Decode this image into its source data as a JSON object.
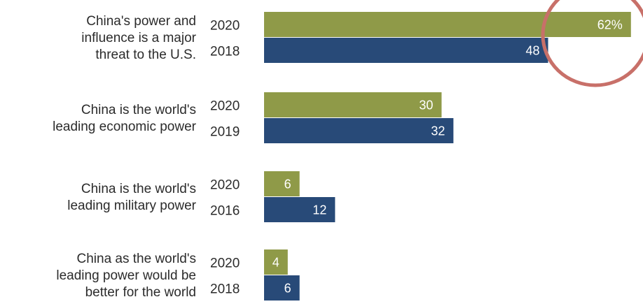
{
  "chart_data": {
    "type": "bar",
    "orientation": "horizontal",
    "xlim": [
      0,
      100
    ],
    "grid": false,
    "legend": "none",
    "colors": {
      "newer": "#8f9a48",
      "older": "#284a78",
      "highlight": "#c87069",
      "value_text": "#ffffff"
    },
    "groups": [
      {
        "label_lines": [
          "China's power and",
          "influence is a major",
          "threat to the U.S."
        ],
        "bars": [
          {
            "year": "2020",
            "value": 62,
            "value_label": "62%",
            "tone": "newer"
          },
          {
            "year": "2018",
            "value": 48,
            "value_label": "48",
            "tone": "older"
          }
        ]
      },
      {
        "label_lines": [
          "China is the world's",
          "leading economic power"
        ],
        "bars": [
          {
            "year": "2020",
            "value": 30,
            "value_label": "30",
            "tone": "newer"
          },
          {
            "year": "2019",
            "value": 32,
            "value_label": "32",
            "tone": "older"
          }
        ]
      },
      {
        "label_lines": [
          "China is the world's",
          "leading military power"
        ],
        "bars": [
          {
            "year": "2020",
            "value": 6,
            "value_label": "6",
            "tone": "newer"
          },
          {
            "year": "2016",
            "value": 12,
            "value_label": "12",
            "tone": "older"
          }
        ]
      },
      {
        "label_lines": [
          "China as the world's",
          "leading power would be",
          "better for the world"
        ],
        "bars": [
          {
            "year": "2020",
            "value": 4,
            "value_label": "4",
            "tone": "newer"
          },
          {
            "year": "2018",
            "value": 6,
            "value_label": "6",
            "tone": "older"
          }
        ]
      }
    ],
    "annotation": {
      "type": "circle",
      "target": "62%"
    }
  }
}
